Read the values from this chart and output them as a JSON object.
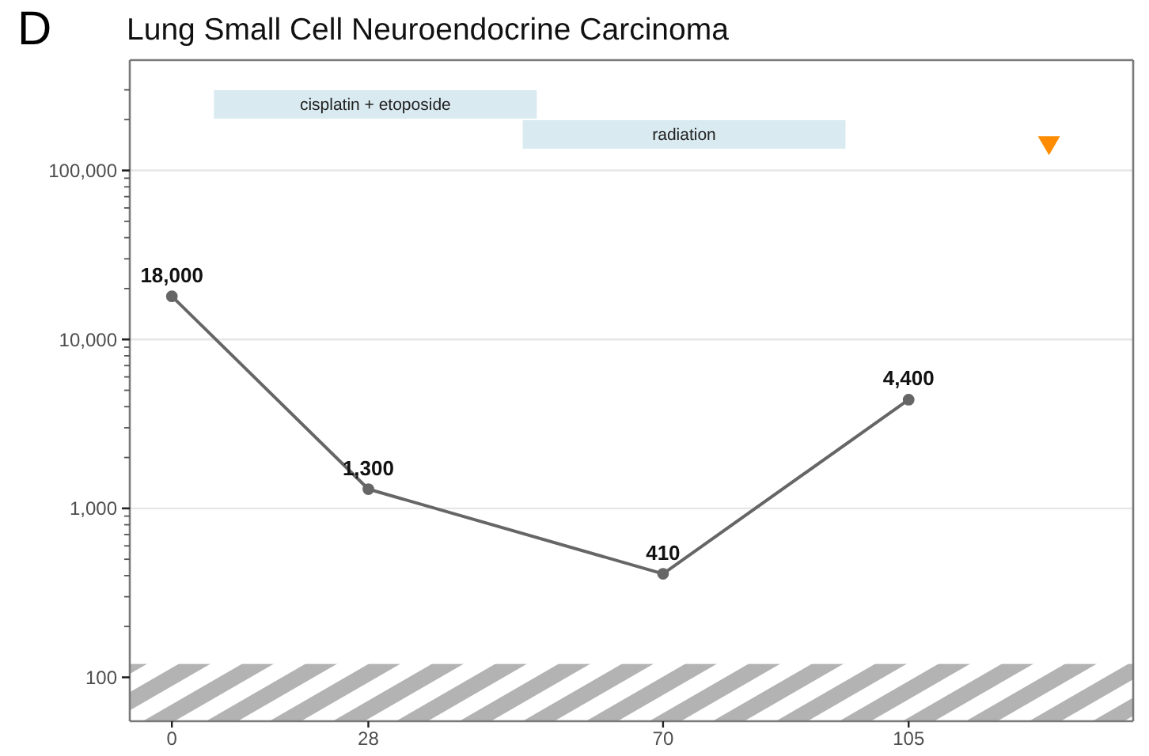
{
  "chart_data": {
    "type": "line",
    "title": "Lung Small Cell Neuroendocrine Carcinoma",
    "annotations": [
      "D"
    ],
    "series": [
      {
        "color": "#666666",
        "x": [
          0,
          28,
          70,
          105
        ],
        "values": [
          18000,
          1300,
          410,
          4400
        ],
        "value_labels": [
          "18,000",
          "1,300",
          "410",
          "4,400"
        ],
        "marker": "circle"
      },
      {
        "type": "scatter",
        "color": "#ff8c00",
        "x": [
          125
        ],
        "values": [
          140000
        ],
        "marker": "triangle"
      }
    ],
    "xlim": [
      -6,
      137
    ],
    "xticks": [
      0,
      28,
      70,
      105
    ],
    "ylim": [
      55,
      450000
    ],
    "log": true,
    "yticks": [
      100,
      {
        "value": 200,
        "label": null
      },
      {
        "value": 300,
        "label": null
      },
      {
        "value": 400,
        "label": null
      },
      {
        "value": 500,
        "label": null
      },
      {
        "value": 600,
        "label": null
      },
      {
        "value": 700,
        "label": null
      },
      {
        "value": 800,
        "label": null
      },
      {
        "value": 900,
        "label": null
      },
      {
        "value": 1000,
        "label": "1,000"
      },
      {
        "value": 2000,
        "label": null
      },
      {
        "value": 3000,
        "label": null
      },
      {
        "value": 4000,
        "label": null
      },
      {
        "value": 5000,
        "label": null
      },
      {
        "value": 6000,
        "label": null
      },
      {
        "value": 7000,
        "label": null
      },
      {
        "value": 8000,
        "label": null
      },
      {
        "value": 9000,
        "label": null
      },
      {
        "value": 10000,
        "label": "10,000"
      },
      {
        "value": 20000,
        "label": null
      },
      {
        "value": 30000,
        "label": null
      },
      {
        "value": 40000,
        "label": null
      },
      {
        "value": 50000,
        "label": null
      },
      {
        "value": 60000,
        "label": null
      },
      {
        "value": 70000,
        "label": null
      },
      {
        "value": 80000,
        "label": null
      },
      {
        "value": 90000,
        "label": null
      },
      {
        "value": 100000,
        "label": "100,000"
      },
      {
        "value": 200000,
        "label": null
      },
      {
        "value": 300000,
        "label": null
      }
    ],
    "grid": "y",
    "bands": [
      {
        "axis": "x",
        "from": 6,
        "to": 52,
        "label": "cisplatin + etoposide",
        "color": "#d9eaf0"
      },
      {
        "axis": "x",
        "from": 50,
        "to": 96,
        "label": "radiation",
        "color": "#d9eaf0"
      },
      {
        "axis": "y",
        "from": 55,
        "to": 120,
        "color": "#b3b3b3"
      }
    ]
  }
}
